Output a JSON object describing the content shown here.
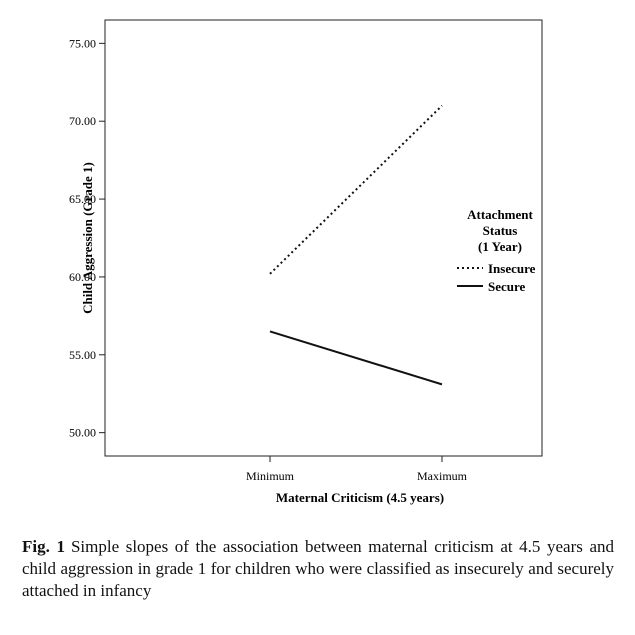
{
  "chart_data": {
    "type": "line",
    "categories": [
      "Minimum",
      "Maximum"
    ],
    "series": [
      {
        "name": "Insecure",
        "values": [
          60.2,
          71.0
        ],
        "dash": "dotted"
      },
      {
        "name": "Secure",
        "values": [
          56.5,
          53.1
        ],
        "dash": "solid"
      }
    ],
    "ylim": [
      48.5,
      76.5
    ],
    "yticks": [
      50,
      55,
      60,
      65,
      70,
      75
    ],
    "ytick_labels": [
      "50.00",
      "55.00",
      "60.00",
      "65.00",
      "70.00",
      "75.00"
    ],
    "xlabel": "Maternal Criticism (4.5 years)",
    "ylabel": "Child Aggression (Grade 1)",
    "legend": {
      "title_lines": [
        "Attachment",
        "Status",
        "(1 Year)"
      ],
      "placement": "right"
    },
    "grid": false,
    "line_color": "#111111"
  },
  "caption": {
    "label": "Fig. 1",
    "text": "Simple slopes of the association between maternal criticism at 4.5 years and child aggression in grade 1 for children who were classified as insecurely and securely attached in infancy"
  }
}
